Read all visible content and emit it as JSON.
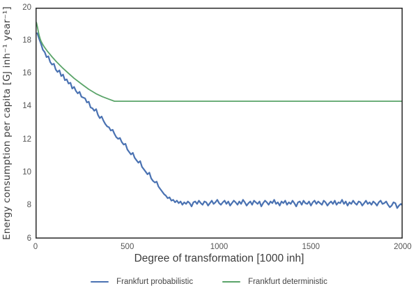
{
  "chart_data": {
    "type": "line",
    "title": "",
    "xlabel": "Degree of transformation [1000 inh]",
    "ylabel": "Energy consumption per capita  [GJ inh⁻¹ year⁻¹]",
    "xlim": [
      0,
      2000
    ],
    "ylim": [
      6,
      20
    ],
    "xticks": [
      0,
      500,
      1000,
      1500,
      2000
    ],
    "yticks": [
      6,
      8,
      10,
      12,
      14,
      16,
      18,
      20
    ],
    "grid": false,
    "legend_position": "bottom-center",
    "axis_color": "#2e2e2e",
    "tick_label_color": "#555555",
    "label_color": "#3d3d3d",
    "background": "#ffffff",
    "series": [
      {
        "name": "Frankfurt probabilistic",
        "color": "#4a72b2",
        "line_width": 2.2,
        "x_start": 10,
        "x_step": 10,
        "values": [
          18.45,
          18.1,
          17.8,
          17.45,
          17.3,
          17.0,
          17.05,
          16.7,
          16.55,
          16.6,
          16.25,
          16.1,
          16.2,
          15.85,
          15.95,
          15.6,
          15.65,
          15.4,
          15.45,
          15.1,
          15.2,
          14.95,
          14.8,
          14.9,
          14.6,
          14.55,
          14.5,
          14.25,
          14.3,
          13.95,
          13.9,
          13.75,
          13.85,
          13.5,
          13.3,
          13.4,
          13.15,
          12.95,
          12.8,
          12.75,
          12.55,
          12.6,
          12.35,
          12.15,
          12.05,
          12.1,
          11.85,
          11.7,
          11.75,
          11.4,
          11.25,
          11.1,
          11.2,
          10.9,
          10.75,
          10.6,
          10.7,
          10.35,
          10.2,
          10.05,
          9.9,
          10.0,
          9.65,
          9.5,
          9.4,
          9.45,
          9.15,
          9.0,
          8.85,
          8.7,
          8.6,
          8.45,
          8.5,
          8.3,
          8.35,
          8.2,
          8.3,
          8.15,
          8.25,
          8.05,
          8.2,
          8.1,
          8.25,
          8.15,
          7.95,
          8.2,
          8.25,
          8.1,
          8.3,
          8.15,
          8.05,
          8.25,
          8.2,
          8.0,
          8.15,
          8.3,
          8.1,
          8.2,
          8.35,
          8.15,
          8.05,
          8.2,
          8.3,
          8.1,
          8.25,
          8.0,
          8.15,
          8.3,
          8.2,
          8.05,
          8.25,
          8.1,
          8.35,
          8.2,
          8.0,
          8.15,
          8.25,
          8.05,
          8.3,
          8.2,
          8.1,
          8.25,
          7.95,
          8.15,
          8.3,
          8.2,
          8.05,
          8.25,
          8.15,
          8.35,
          8.1,
          8.2,
          8.0,
          8.25,
          8.15,
          8.3,
          8.05,
          8.2,
          8.1,
          8.3,
          8.15,
          7.95,
          8.2,
          8.25,
          8.05,
          8.3,
          8.15,
          8.1,
          8.25,
          8.0,
          8.2,
          8.3,
          8.1,
          8.25,
          8.15,
          8.05,
          8.3,
          8.2,
          8.0,
          8.15,
          8.25,
          8.1,
          8.3,
          8.05,
          8.2,
          8.15,
          8.35,
          8.1,
          8.25,
          8.0,
          8.2,
          8.1,
          8.3,
          8.15,
          8.05,
          8.25,
          8.2,
          8.0,
          8.15,
          8.3,
          8.1,
          8.2,
          8.05,
          8.25,
          8.15,
          8.0,
          8.2,
          8.3,
          8.1,
          8.15,
          8.25,
          8.05,
          7.9,
          8.0,
          8.2,
          8.15,
          7.85,
          8.0,
          8.1,
          8.0
        ]
      },
      {
        "name": "Frankfurt deterministic",
        "color": "#5aa469",
        "line_width": 1.8,
        "points": [
          [
            5,
            19.1
          ],
          [
            10,
            18.85
          ],
          [
            15,
            18.55
          ],
          [
            20,
            18.3
          ],
          [
            25,
            18.12
          ],
          [
            30,
            17.97
          ],
          [
            40,
            17.76
          ],
          [
            50,
            17.58
          ],
          [
            63,
            17.38
          ],
          [
            75,
            17.22
          ],
          [
            90,
            17.02
          ],
          [
            114,
            16.72
          ],
          [
            145,
            16.37
          ],
          [
            177,
            16.05
          ],
          [
            210,
            15.72
          ],
          [
            253,
            15.35
          ],
          [
            290,
            15.05
          ],
          [
            330,
            14.78
          ],
          [
            365,
            14.6
          ],
          [
            400,
            14.45
          ],
          [
            430,
            14.33
          ],
          [
            2000,
            14.33
          ]
        ]
      }
    ]
  }
}
